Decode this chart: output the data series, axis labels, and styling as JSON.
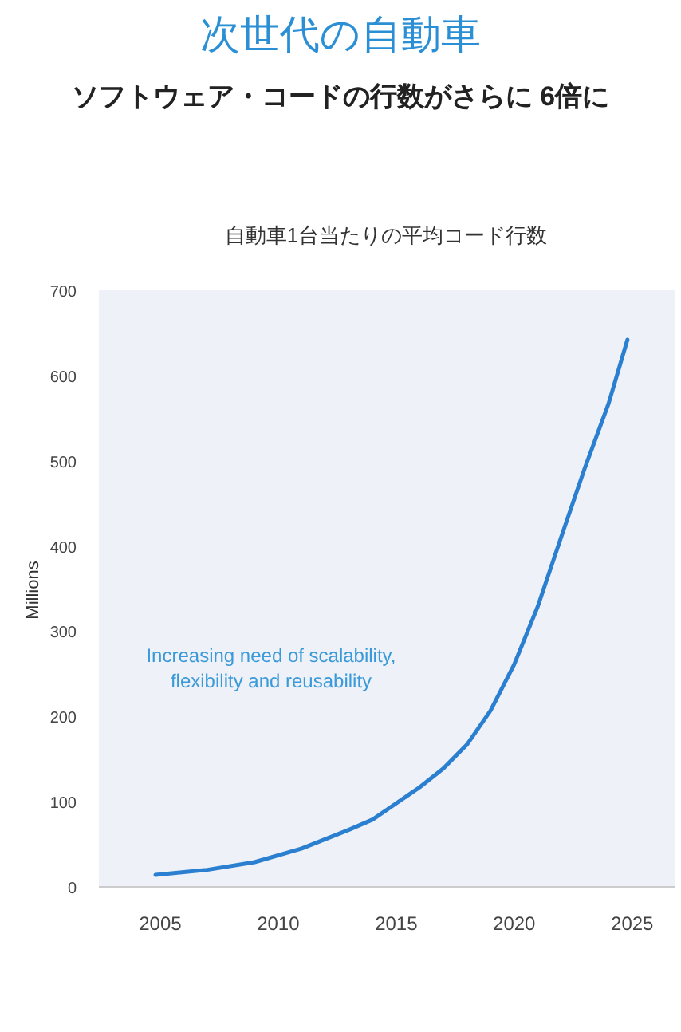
{
  "chart_data": {
    "type": "line",
    "title": "次世代の自動車",
    "subtitle": "ソフトウェア・コードの行数がさらに 6倍に",
    "ylabel": "Millions",
    "annotations": [
      "自動車1台当たりの平均コード行数",
      "Increasing need of scalability,\nflexibility and reusability"
    ],
    "x": [
      2004.8,
      2007,
      2009,
      2011,
      2013,
      2014,
      2015,
      2016,
      2017,
      2018,
      2019,
      2020,
      2021,
      2022,
      2023,
      2024,
      2024.8
    ],
    "series": [
      {
        "color": "#2a7fd0",
        "values": [
          14,
          20,
          29,
          45,
          67,
          79,
          98,
          117,
          139,
          167,
          207,
          261,
          329,
          411,
          492,
          567,
          642
        ]
      }
    ],
    "xlim": [
      2002.4,
      2026.8
    ],
    "ylim": [
      0,
      700
    ],
    "xticks": [
      2005,
      2010,
      2015,
      2020,
      2025
    ],
    "yticks": [
      0,
      100,
      200,
      300,
      400,
      500,
      600,
      700
    ],
    "grid": false
  }
}
